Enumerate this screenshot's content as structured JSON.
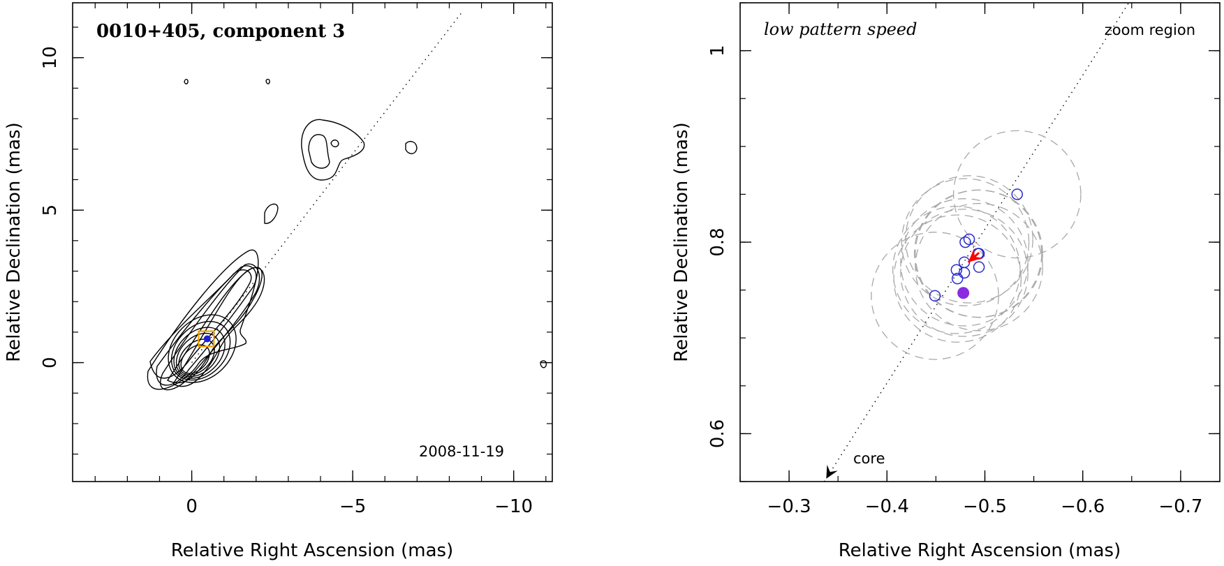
{
  "chart_data": [
    {
      "type": "scatter",
      "title": "0010+405, component 3",
      "date_label": "2008-11-19",
      "xlabel": "Relative Right Ascension (mas)",
      "ylabel": "Relative Declination (mas)",
      "xlim": [
        3.7,
        -11.2
      ],
      "ylim": [
        -3.9,
        11.8
      ],
      "x_ticks": [
        0,
        -5,
        -10
      ],
      "x_tick_labels": [
        "0",
        "−5",
        "−10"
      ],
      "y_ticks": [
        0,
        5,
        10
      ],
      "y_tick_labels": [
        "0",
        "5",
        "10"
      ],
      "jet_line": {
        "x": [
          0,
          -8.4
        ],
        "y": [
          0,
          11.5
        ]
      },
      "component_box": {
        "x": -0.45,
        "y": 0.78,
        "half_size": 0.25
      },
      "component_point": {
        "x": -0.48,
        "y": 0.78
      },
      "colors": {
        "contour": "#000000",
        "box": "#f0a000",
        "point": "#2020d0"
      }
    },
    {
      "type": "scatter",
      "title": "low pattern speed",
      "corner_label": "zoom region",
      "annotation": "core",
      "xlabel": "Relative Right Ascension (mas)",
      "ylabel": "Relative Declination (mas)",
      "xlim": [
        -0.25,
        -0.74
      ],
      "ylim": [
        0.55,
        1.05
      ],
      "x_ticks": [
        -0.3,
        -0.4,
        -0.5,
        -0.6,
        -0.7
      ],
      "x_tick_labels": [
        "−0.3",
        "−0.4",
        "−0.5",
        "−0.6",
        "−0.7"
      ],
      "y_ticks": [
        0.6,
        0.8,
        1.0
      ],
      "y_tick_labels": [
        "0.6",
        "0.8",
        "1"
      ],
      "jet_line": {
        "x": [
          -0.336,
          -0.647
        ],
        "y": [
          0.55,
          1.05
        ]
      },
      "observed_positions": [
        {
          "x": -0.533,
          "y": 0.85
        },
        {
          "x": -0.48,
          "y": 0.8
        },
        {
          "x": -0.484,
          "y": 0.803
        },
        {
          "x": -0.493,
          "y": 0.788
        },
        {
          "x": -0.494,
          "y": 0.788
        },
        {
          "x": -0.479,
          "y": 0.779
        },
        {
          "x": -0.494,
          "y": 0.774
        },
        {
          "x": -0.471,
          "y": 0.771
        },
        {
          "x": -0.479,
          "y": 0.768
        },
        {
          "x": -0.472,
          "y": 0.762
        },
        {
          "x": -0.449,
          "y": 0.744
        }
      ],
      "uncertainty_radius": 0.065,
      "mean_position": {
        "x": -0.478,
        "y": 0.747
      },
      "velocity_arrow": {
        "x_from": -0.494,
        "y_from": 0.789,
        "x_to": -0.483,
        "y_to": 0.779
      },
      "core_arrow": {
        "x_from": -0.35,
        "y_from": 0.575,
        "x_to": -0.338,
        "y_to": 0.553
      },
      "colors": {
        "circles": "#2a2acc",
        "mean": "#8a2be2",
        "arrow": "#ff0000",
        "uncertainty": "#a8a8a8"
      }
    }
  ]
}
